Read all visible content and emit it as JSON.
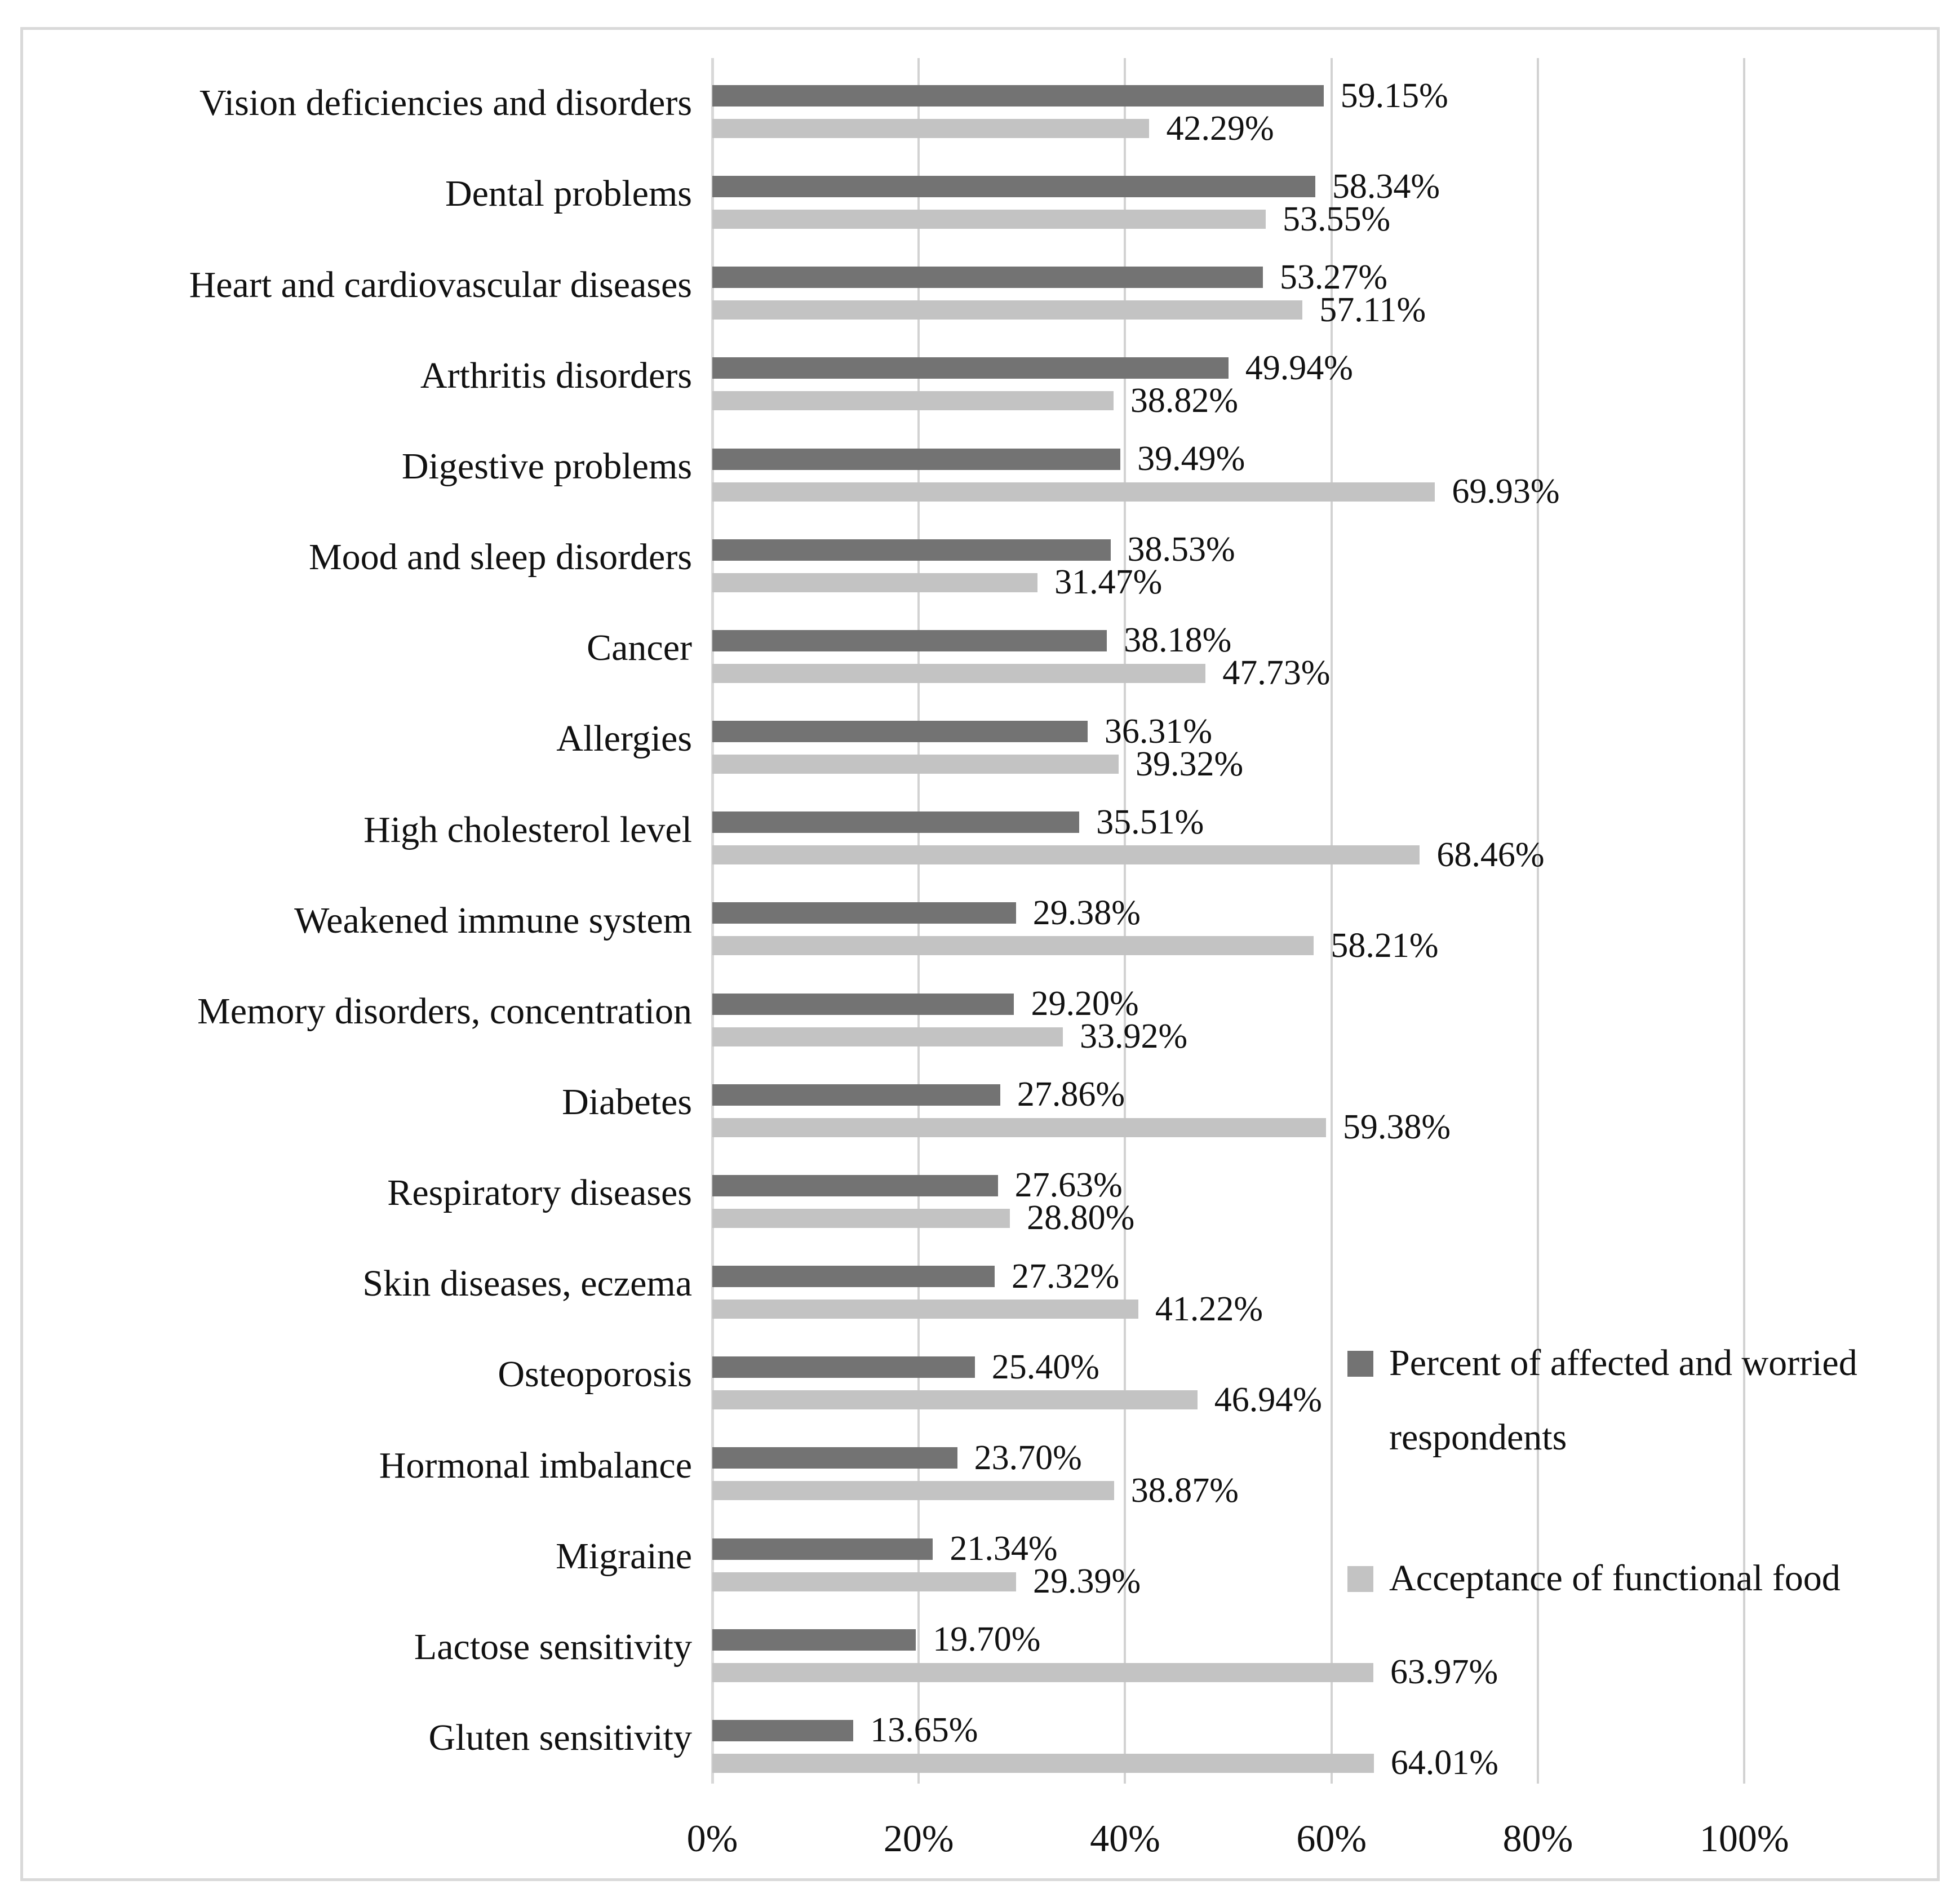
{
  "chart_data": {
    "type": "bar",
    "orientation": "horizontal",
    "title": "",
    "xlabel": "",
    "ylabel": "",
    "xlim": [
      0,
      118.5
    ],
    "grid": true,
    "legend_position": "middle-right",
    "categories": [
      "Vision deficiencies and disorders",
      "Dental problems",
      "Heart and cardiovascular diseases",
      "Arthritis disorders",
      "Digestive problems",
      "Mood and sleep disorders",
      "Cancer",
      "Allergies",
      "High cholesterol level",
      "Weakened immune system",
      "Memory disorders, concentration",
      "Diabetes",
      "Respiratory diseases",
      "Skin diseases, eczema",
      "Osteoporosis",
      "Hormonal imbalance",
      "Migraine",
      "Lactose sensitivity",
      "Gluten sensitivity"
    ],
    "series": [
      {
        "name": "Percent of affected and worried respondents",
        "color": "#737373",
        "values": [
          59.15,
          58.34,
          53.27,
          49.94,
          39.49,
          38.53,
          38.18,
          36.31,
          35.51,
          29.38,
          29.2,
          27.86,
          27.63,
          27.32,
          25.4,
          23.7,
          21.34,
          19.7,
          13.65
        ],
        "labels": [
          "59.15%",
          "58.34%",
          "53.27%",
          "49.94%",
          "39.49%",
          "38.53%",
          "38.18%",
          "36.31%",
          "35.51%",
          "29.38%",
          "29.20%",
          "27.86%",
          "27.63%",
          "27.32%",
          "25.40%",
          "23.70%",
          "21.34%",
          "19.70%",
          "13.65%"
        ]
      },
      {
        "name": "Acceptance of functional food",
        "color": "#c3c3c3",
        "values": [
          42.29,
          53.55,
          57.11,
          38.82,
          69.93,
          31.47,
          47.73,
          39.32,
          68.46,
          58.21,
          33.92,
          59.38,
          28.8,
          41.22,
          46.94,
          38.87,
          29.39,
          63.97,
          64.01
        ],
        "labels": [
          "42.29%",
          "53.55%",
          "57.11%",
          "38.82%",
          "69.93%",
          "31.47%",
          "47.73%",
          "39.32%",
          "68.46%",
          "58.21%",
          "33.92%",
          "59.38%",
          "28.80%",
          "41.22%",
          "46.94%",
          "38.87%",
          "29.39%",
          "63.97%",
          "64.01%"
        ]
      }
    ],
    "x_ticks": [
      {
        "value": 0,
        "label": "0%"
      },
      {
        "value": 20,
        "label": "20%"
      },
      {
        "value": 40,
        "label": "40%"
      },
      {
        "value": 60,
        "label": "60%"
      },
      {
        "value": 80,
        "label": "80%"
      },
      {
        "value": 100,
        "label": "100%"
      }
    ],
    "gridline_color": "#d2d2d2",
    "panel_border_color": "#d9d9d9",
    "background_color": "#ffffff",
    "text_color": "#111111"
  }
}
